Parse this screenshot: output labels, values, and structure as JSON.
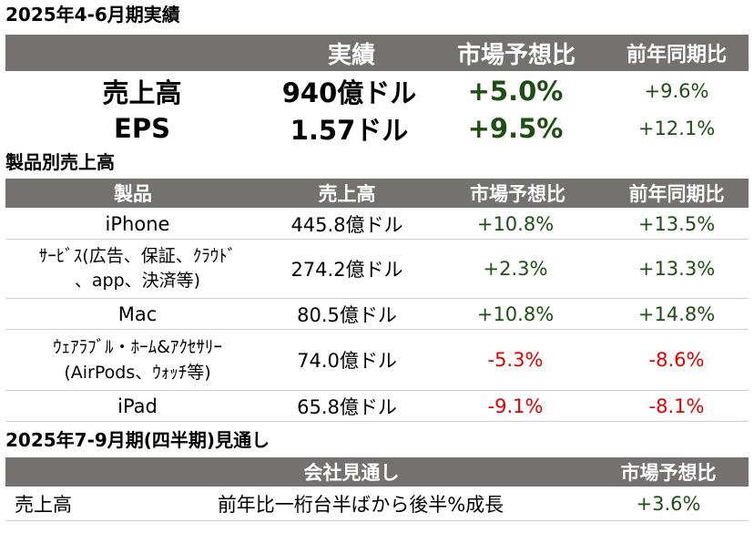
{
  "summary": {
    "title": "2025年4-6月期実績",
    "headers": [
      "実績",
      "市場予想比",
      "前年同期比"
    ],
    "rows": [
      {
        "label": "売上高",
        "actual": "940億ドル",
        "vs_consensus": "+5.0%",
        "yoy": "+9.6%"
      },
      {
        "label": "EPS",
        "actual": "1.57ドル",
        "vs_consensus": "+9.5%",
        "yoy": "+12.1%"
      }
    ]
  },
  "products": {
    "title": "製品別売上高",
    "headers": [
      "製品",
      "売上高",
      "市場予想比",
      "前年同期比"
    ],
    "rows": [
      {
        "name_line1": "iPhone",
        "name_line2": "",
        "revenue": "445.8億ドル",
        "vs_consensus": "+10.8%",
        "yoy": "+13.5%"
      },
      {
        "name_line1": "ｻｰﾋﾞｽ(広告、保証、ｸﾗｳﾄﾞ",
        "name_line2": "、app、決済等)",
        "revenue": "274.2億ドル",
        "vs_consensus": "+2.3%",
        "yoy": "+13.3%"
      },
      {
        "name_line1": "Mac",
        "name_line2": "",
        "revenue": "80.5億ドル",
        "vs_consensus": "+10.8%",
        "yoy": "+14.8%"
      },
      {
        "name_line1": "ｳｪｱﾗﾌﾞﾙ・ﾎｰﾑ&ｱｸｾｻﾘｰ",
        "name_line2": "(AirPods、ｳｫｯﾁ等)",
        "revenue": "74.0億ドル",
        "vs_consensus": "-5.3%",
        "yoy": "-8.6%"
      },
      {
        "name_line1": "iPad",
        "name_line2": "",
        "revenue": "65.8億ドル",
        "vs_consensus": "-9.1%",
        "yoy": "-8.1%"
      }
    ]
  },
  "outlook": {
    "title": "2025年7-9月期(四半期)見通し",
    "headers": [
      "会社見通し",
      "市場予想比"
    ],
    "rows": [
      {
        "label": "売上高",
        "guidance": "前年比一桁台半ばから後半%成長",
        "vs_consensus": "+3.6%"
      }
    ]
  },
  "colors": {
    "header_bg": "#767171",
    "positive_bold": "#1f4e14",
    "positive": "#1f4e14",
    "negative": "#e00000"
  }
}
